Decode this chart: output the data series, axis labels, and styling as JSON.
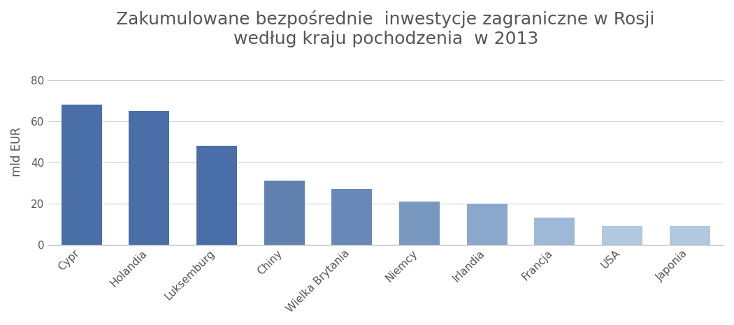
{
  "title": "Zakumulowane bezpośrednie  inwestycje zagraniczne w Rosji\nwedług kraju pochodzenia  w 2013",
  "ylabel": "mld EUR",
  "categories": [
    "Cypr",
    "Holandia",
    "Luksemburg",
    "Chiny",
    "Wielka Brytania",
    "Niemcy",
    "Irlandia",
    "Francja",
    "USA",
    "Japonia"
  ],
  "values": [
    68,
    65,
    48,
    31,
    27,
    21,
    20,
    13,
    9,
    9
  ],
  "bar_colors": [
    "#4A6EA8",
    "#4A6EA8",
    "#4A6EA8",
    "#6080B0",
    "#6888B8",
    "#7898C0",
    "#8AA8CC",
    "#A0B8D8",
    "#B0C8E0",
    "#B0C8E0"
  ],
  "ylim": [
    0,
    90
  ],
  "yticks": [
    0,
    20,
    40,
    60,
    80
  ],
  "background_color": "#ffffff",
  "text_color": "#555555",
  "title_fontsize": 18,
  "label_fontsize": 12,
  "tick_fontsize": 11,
  "grid_color": "#aaaaaa",
  "fig_bg": "#ffffff",
  "axes_bg": "#ffffff"
}
